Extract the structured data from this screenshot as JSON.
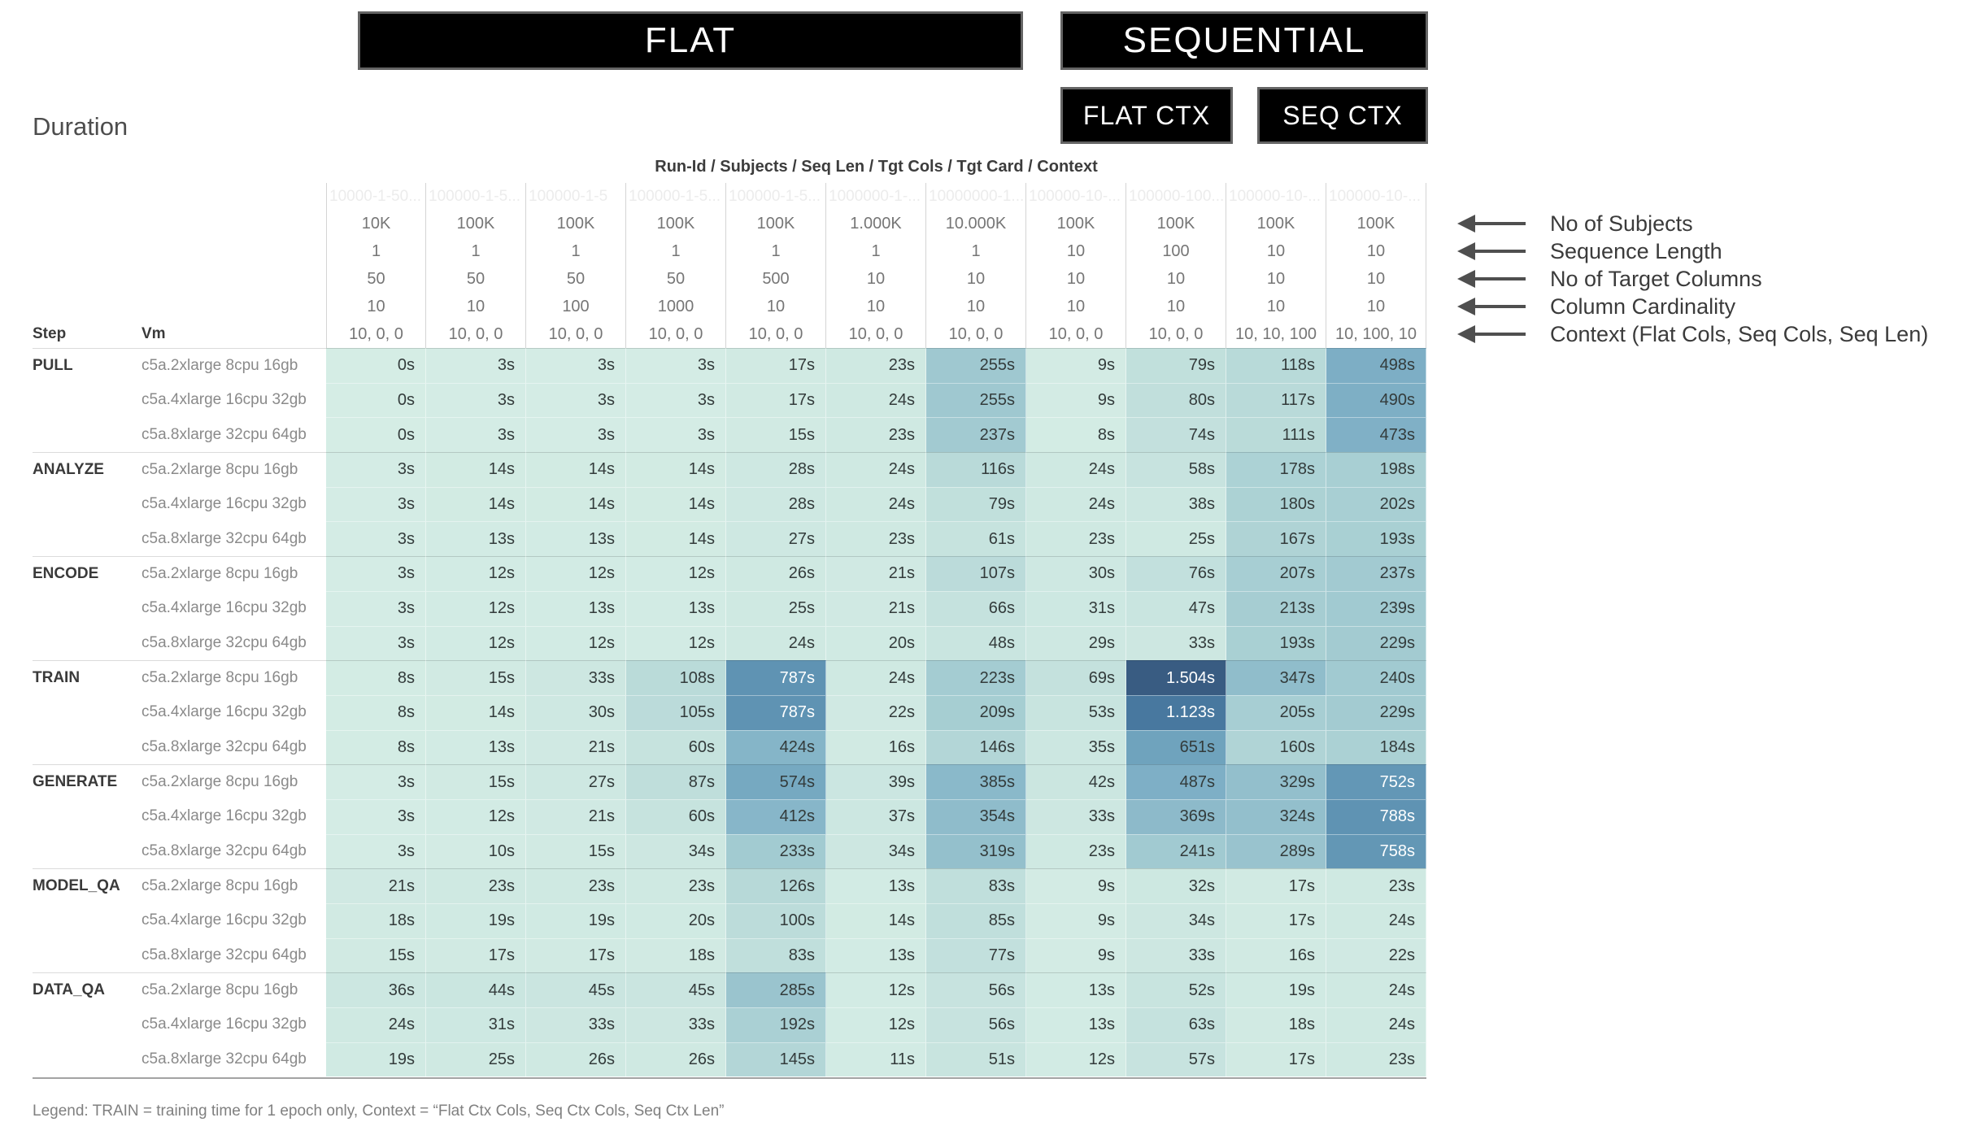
{
  "header_boxes": {
    "flat": "FLAT",
    "sequential": "SEQUENTIAL",
    "flat_ctx": "FLAT CTX",
    "seq_ctx": "SEQ CTX"
  },
  "title": "Duration",
  "legend": "Legend: TRAIN = training time for 1 epoch only, Context = “Flat Ctx Cols, Seq Ctx Cols, Seq Ctx Len”",
  "annotations": [
    "No of Subjects",
    "Sequence Length",
    "No of Target Columns",
    "Column Cardinality",
    "Context (Flat Cols, Seq Cols, Seq Len)"
  ],
  "chart_data": {
    "type": "heatmap",
    "title": "Duration",
    "values_unit": "seconds",
    "column_header_label": "Run-Id / Subjects / Seq Len / Tgt Cols / Tgt Card / Context",
    "step_header": "Step",
    "vm_header": "Vm",
    "column_params": {
      "run_ids": [
        "10000-1-50...",
        "100000-1-5...",
        "100000-1-5",
        "100000-1-5...",
        "100000-1-5...",
        "1000000-1-...",
        "10000000-1...",
        "100000-10-...",
        "100000-100...",
        "100000-10-...",
        "100000-10-..."
      ],
      "subjects": [
        "10K",
        "100K",
        "100K",
        "100K",
        "100K",
        "1.000K",
        "10.000K",
        "100K",
        "100K",
        "100K",
        "100K"
      ],
      "seq_len": [
        "1",
        "1",
        "1",
        "1",
        "1",
        "1",
        "1",
        "10",
        "100",
        "10",
        "10"
      ],
      "tgt_cols": [
        "50",
        "50",
        "50",
        "50",
        "500",
        "10",
        "10",
        "10",
        "10",
        "10",
        "10"
      ],
      "tgt_card": [
        "10",
        "10",
        "100",
        "1000",
        "10",
        "10",
        "10",
        "10",
        "10",
        "10",
        "10"
      ],
      "context": [
        "10, 0, 0",
        "10, 0, 0",
        "10, 0, 0",
        "10, 0, 0",
        "10, 0, 0",
        "10, 0, 0",
        "10, 0, 0",
        "10, 0, 0",
        "10, 0, 0",
        "10, 10, 100",
        "10, 100, 10"
      ]
    },
    "row_groups": [
      {
        "step": "PULL",
        "rows": [
          {
            "vm": "c5a.2xlarge 8cpu 16gb",
            "values": [
              "0s",
              "3s",
              "3s",
              "3s",
              "17s",
              "23s",
              "255s",
              "9s",
              "79s",
              "118s",
              "498s"
            ]
          },
          {
            "vm": "c5a.4xlarge 16cpu 32gb",
            "values": [
              "0s",
              "3s",
              "3s",
              "3s",
              "17s",
              "24s",
              "255s",
              "9s",
              "80s",
              "117s",
              "490s"
            ]
          },
          {
            "vm": "c5a.8xlarge 32cpu 64gb",
            "values": [
              "0s",
              "3s",
              "3s",
              "3s",
              "15s",
              "23s",
              "237s",
              "8s",
              "74s",
              "111s",
              "473s"
            ]
          }
        ]
      },
      {
        "step": "ANALYZE",
        "rows": [
          {
            "vm": "c5a.2xlarge 8cpu 16gb",
            "values": [
              "3s",
              "14s",
              "14s",
              "14s",
              "28s",
              "24s",
              "116s",
              "24s",
              "58s",
              "178s",
              "198s"
            ]
          },
          {
            "vm": "c5a.4xlarge 16cpu 32gb",
            "values": [
              "3s",
              "14s",
              "14s",
              "14s",
              "28s",
              "24s",
              "79s",
              "24s",
              "38s",
              "180s",
              "202s"
            ]
          },
          {
            "vm": "c5a.8xlarge 32cpu 64gb",
            "values": [
              "3s",
              "13s",
              "13s",
              "14s",
              "27s",
              "23s",
              "61s",
              "23s",
              "25s",
              "167s",
              "193s"
            ]
          }
        ]
      },
      {
        "step": "ENCODE",
        "rows": [
          {
            "vm": "c5a.2xlarge 8cpu 16gb",
            "values": [
              "3s",
              "12s",
              "12s",
              "12s",
              "26s",
              "21s",
              "107s",
              "30s",
              "76s",
              "207s",
              "237s"
            ]
          },
          {
            "vm": "c5a.4xlarge 16cpu 32gb",
            "values": [
              "3s",
              "12s",
              "13s",
              "13s",
              "25s",
              "21s",
              "66s",
              "31s",
              "47s",
              "213s",
              "239s"
            ]
          },
          {
            "vm": "c5a.8xlarge 32cpu 64gb",
            "values": [
              "3s",
              "12s",
              "12s",
              "12s",
              "24s",
              "20s",
              "48s",
              "29s",
              "33s",
              "193s",
              "229s"
            ]
          }
        ]
      },
      {
        "step": "TRAIN",
        "rows": [
          {
            "vm": "c5a.2xlarge 8cpu 16gb",
            "values": [
              "8s",
              "15s",
              "33s",
              "108s",
              "787s",
              "24s",
              "223s",
              "69s",
              "1.504s",
              "347s",
              "240s"
            ]
          },
          {
            "vm": "c5a.4xlarge 16cpu 32gb",
            "values": [
              "8s",
              "14s",
              "30s",
              "105s",
              "787s",
              "22s",
              "209s",
              "53s",
              "1.123s",
              "205s",
              "229s"
            ]
          },
          {
            "vm": "c5a.8xlarge 32cpu 64gb",
            "values": [
              "8s",
              "13s",
              "21s",
              "60s",
              "424s",
              "16s",
              "146s",
              "35s",
              "651s",
              "160s",
              "184s"
            ]
          }
        ]
      },
      {
        "step": "GENERATE",
        "rows": [
          {
            "vm": "c5a.2xlarge 8cpu 16gb",
            "values": [
              "3s",
              "15s",
              "27s",
              "87s",
              "574s",
              "39s",
              "385s",
              "42s",
              "487s",
              "329s",
              "752s"
            ]
          },
          {
            "vm": "c5a.4xlarge 16cpu 32gb",
            "values": [
              "3s",
              "12s",
              "21s",
              "60s",
              "412s",
              "37s",
              "354s",
              "33s",
              "369s",
              "324s",
              "788s"
            ]
          },
          {
            "vm": "c5a.8xlarge 32cpu 64gb",
            "values": [
              "3s",
              "10s",
              "15s",
              "34s",
              "233s",
              "34s",
              "319s",
              "23s",
              "241s",
              "289s",
              "758s"
            ]
          }
        ]
      },
      {
        "step": "MODEL_QA",
        "rows": [
          {
            "vm": "c5a.2xlarge 8cpu 16gb",
            "values": [
              "21s",
              "23s",
              "23s",
              "23s",
              "126s",
              "13s",
              "83s",
              "9s",
              "32s",
              "17s",
              "23s"
            ]
          },
          {
            "vm": "c5a.4xlarge 16cpu 32gb",
            "values": [
              "18s",
              "19s",
              "19s",
              "20s",
              "100s",
              "14s",
              "85s",
              "9s",
              "34s",
              "17s",
              "24s"
            ]
          },
          {
            "vm": "c5a.8xlarge 32cpu 64gb",
            "values": [
              "15s",
              "17s",
              "17s",
              "18s",
              "83s",
              "13s",
              "77s",
              "9s",
              "33s",
              "16s",
              "22s"
            ]
          }
        ]
      },
      {
        "step": "DATA_QA",
        "rows": [
          {
            "vm": "c5a.2xlarge 8cpu 16gb",
            "values": [
              "36s",
              "44s",
              "45s",
              "45s",
              "285s",
              "12s",
              "56s",
              "13s",
              "52s",
              "19s",
              "24s"
            ]
          },
          {
            "vm": "c5a.4xlarge 16cpu 32gb",
            "values": [
              "24s",
              "31s",
              "33s",
              "33s",
              "192s",
              "12s",
              "56s",
              "13s",
              "63s",
              "18s",
              "24s"
            ]
          },
          {
            "vm": "c5a.8xlarge 32cpu 64gb",
            "values": [
              "19s",
              "25s",
              "26s",
              "26s",
              "145s",
              "11s",
              "51s",
              "12s",
              "57s",
              "17s",
              "23s"
            ]
          }
        ]
      },
      {
        "step": ""
      }
    ],
    "color_scale": {
      "stops": [
        [
          0,
          "#d5ede5"
        ],
        [
          100,
          "#bcdcda"
        ],
        [
          200,
          "#a8cfd3"
        ],
        [
          300,
          "#97c2cd"
        ],
        [
          400,
          "#88b7c9"
        ],
        [
          500,
          "#7daec5"
        ],
        [
          650,
          "#6fa3bd"
        ],
        [
          800,
          "#5e92b2"
        ],
        [
          1130,
          "#48779f"
        ],
        [
          1510,
          "#395c82"
        ]
      ],
      "white_text_threshold": 700
    }
  }
}
